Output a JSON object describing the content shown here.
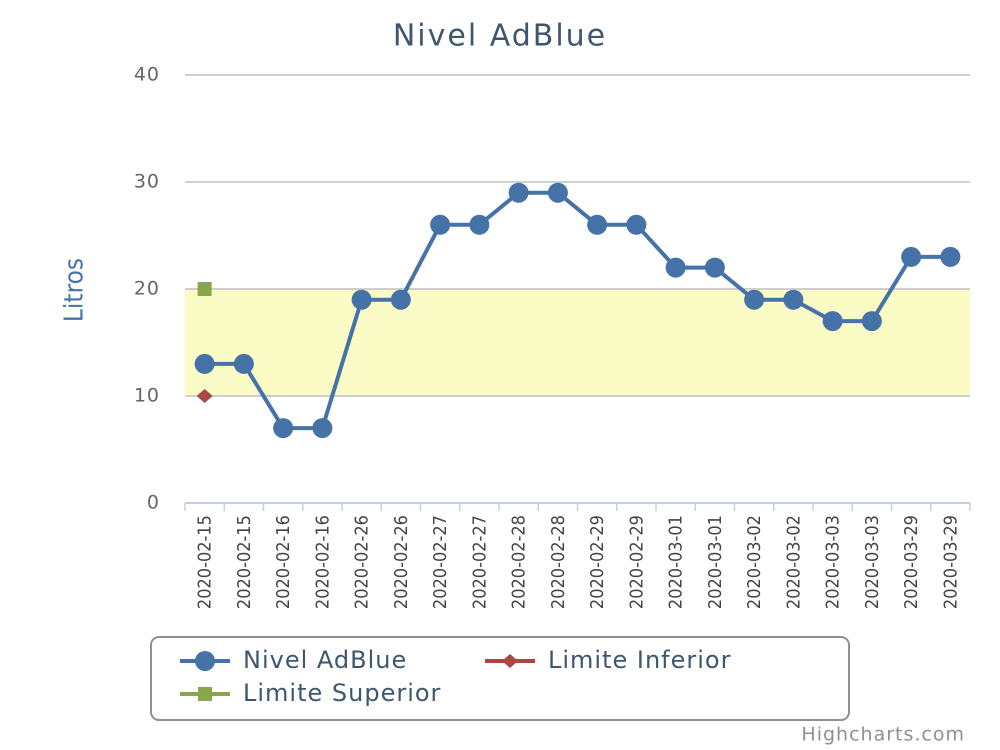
{
  "chart_data": {
    "type": "line",
    "title": "Nivel AdBlue",
    "y_label": "Litros",
    "credits": "Highcharts.com",
    "categories": [
      "2020-02-15",
      "2020-02-15",
      "2020-02-16",
      "2020-02-16",
      "2020-02-26",
      "2020-02-26",
      "2020-02-27",
      "2020-02-27",
      "2020-02-28",
      "2020-02-28",
      "2020-02-29",
      "2020-02-29",
      "2020-03-01",
      "2020-03-01",
      "2020-03-02",
      "2020-03-02",
      "2020-03-03",
      "2020-03-03",
      "2020-03-29",
      "2020-03-29"
    ],
    "series": [
      {
        "name": "Nivel AdBlue",
        "color": "#4572a7",
        "marker": "circle",
        "values": [
          13,
          13,
          7,
          7,
          19,
          19,
          26,
          26,
          29,
          29,
          26,
          26,
          22,
          22,
          19,
          19,
          17,
          17,
          23,
          23
        ]
      },
      {
        "name": "Limite Inferior",
        "color": "#aa4643",
        "marker": "diamond",
        "values": [
          10,
          null,
          null,
          null,
          null,
          null,
          null,
          null,
          null,
          null,
          null,
          null,
          null,
          null,
          null,
          null,
          null,
          null,
          null,
          null
        ]
      },
      {
        "name": "Limite Superior",
        "color": "#89a54e",
        "marker": "square",
        "values": [
          20,
          null,
          null,
          null,
          null,
          null,
          null,
          null,
          null,
          null,
          null,
          null,
          null,
          null,
          null,
          null,
          null,
          null,
          null,
          null
        ]
      }
    ],
    "plot_band": {
      "from": 10,
      "to": 20,
      "color": "#fbfcc5"
    },
    "ylim": [
      0,
      40
    ],
    "yticks": [
      0,
      10,
      20,
      30,
      40
    ],
    "grid": true
  }
}
